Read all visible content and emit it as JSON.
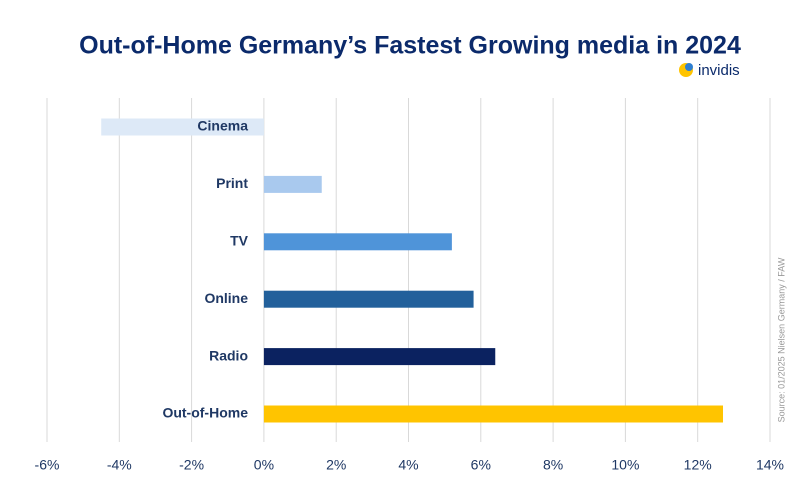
{
  "chart_data": {
    "type": "bar",
    "orientation": "horizontal",
    "title": "Out-of-Home Germany’s Fastest Growing media in 2024",
    "brand": "invidis",
    "source": "Source: 01/2025 Nielsen Germany / FAW",
    "categories": [
      "Cinema",
      "Print",
      "TV",
      "Online",
      "Radio",
      "Out-of-Home"
    ],
    "values": [
      -4.5,
      1.6,
      5.2,
      5.8,
      6.4,
      12.7
    ],
    "colors": [
      "#dde9f7",
      "#a9c9ee",
      "#4f94d9",
      "#22609b",
      "#0b2260",
      "#ffc400"
    ],
    "xlim": [
      -6,
      14
    ],
    "xticks": [
      {
        "value": -6,
        "label": "-6%"
      },
      {
        "value": -4,
        "label": "-4%"
      },
      {
        "value": -2,
        "label": "-2%"
      },
      {
        "value": 0,
        "label": "0%"
      },
      {
        "value": 2,
        "label": "2%"
      },
      {
        "value": 4,
        "label": "4%"
      },
      {
        "value": 6,
        "label": "6%"
      },
      {
        "value": 8,
        "label": "8%"
      },
      {
        "value": 10,
        "label": "10%"
      },
      {
        "value": 12,
        "label": "12%"
      },
      {
        "value": 14,
        "label": "14%"
      }
    ],
    "grid": true
  }
}
